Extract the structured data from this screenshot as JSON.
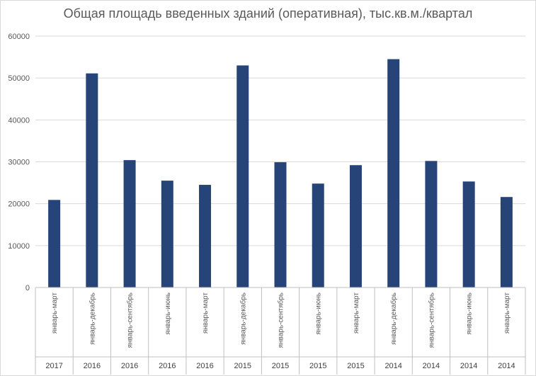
{
  "chart_data": {
    "type": "bar",
    "title": "Общая площадь введенных зданий (оперативная), тыс.кв.м./квартал",
    "xlabel": "",
    "ylabel": "",
    "ylim": [
      0,
      60000
    ],
    "yticks": [
      0,
      10000,
      20000,
      30000,
      40000,
      50000,
      60000
    ],
    "grid": true,
    "legend": "none",
    "bar_color": "#264478",
    "categories": [
      {
        "period": "январь-март",
        "year": "2017"
      },
      {
        "period": "январь-декабрь",
        "year": "2016"
      },
      {
        "period": "январь-сентябрь",
        "year": "2016"
      },
      {
        "period": "январь-июнь",
        "year": "2016"
      },
      {
        "period": "январь-март",
        "year": "2016"
      },
      {
        "period": "январь-декабрь",
        "year": "2015"
      },
      {
        "period": "январь-сентябрь",
        "year": "2015"
      },
      {
        "period": "январь-июнь",
        "year": "2015"
      },
      {
        "period": "январь-март",
        "year": "2015"
      },
      {
        "period": "январь-декабрь",
        "year": "2014"
      },
      {
        "period": "январь-сентябрь",
        "year": "2014"
      },
      {
        "period": "январь-июнь",
        "year": "2014"
      },
      {
        "period": "январь-март",
        "year": "2014"
      }
    ],
    "values": [
      20900,
      51100,
      30400,
      25500,
      24500,
      53000,
      29900,
      24800,
      29200,
      54500,
      30200,
      25300,
      21600
    ]
  }
}
